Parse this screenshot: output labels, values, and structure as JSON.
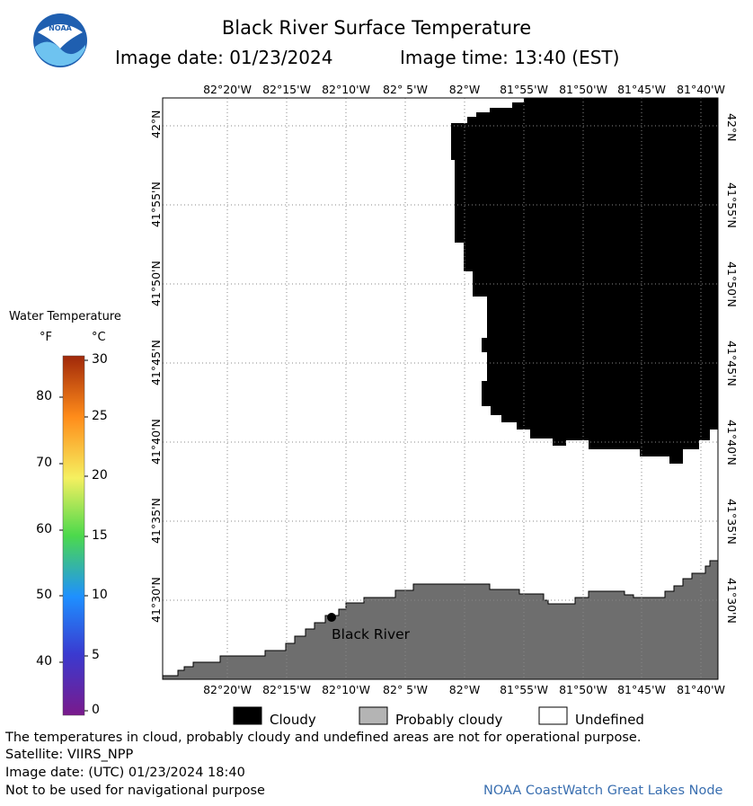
{
  "header": {
    "title": "Black River Surface Temperature",
    "image_date": "Image date: 01/23/2024",
    "image_time": "Image time: 13:40 (EST)"
  },
  "logo": {
    "text": "NOAA",
    "icon": "noaa-logo-icon"
  },
  "map": {
    "lon_labels": [
      "82°20'W",
      "82°15'W",
      "82°10'W",
      "82° 5'W",
      "82°W",
      "81°55'W",
      "81°50'W",
      "81°45'W",
      "81°40'W"
    ],
    "lat_labels": [
      "42°N",
      "41°55'N",
      "41°50'N",
      "41°45'N",
      "41°40'N",
      "41°35'N",
      "41°30'N"
    ],
    "city": {
      "name": "Black River"
    },
    "colors": {
      "cloud": "#000000",
      "land": "#6e6e6e",
      "water_undefined": "#ffffff"
    }
  },
  "legend": {
    "title": "Water Temperature",
    "unit_f": "°F",
    "unit_c": "°C",
    "f_ticks": [
      "80",
      "70",
      "60",
      "50",
      "40"
    ],
    "c_ticks": [
      "30",
      "25",
      "20",
      "15",
      "10",
      "5",
      "0"
    ]
  },
  "key": {
    "cloudy": "Cloudy",
    "probably_cloudy": "Probably cloudy",
    "undefined": "Undefined"
  },
  "footer": {
    "disclaimer": "The temperatures in cloud, probably cloudy and undefined areas are not for operational purpose.",
    "satellite": "Satellite: VIIRS_NPP",
    "utc_date": "Image date: (UTC) 01/23/2024  18:40",
    "nav_warning": "Not to be used for navigational purpose",
    "credit": "NOAA CoastWatch Great Lakes Node"
  }
}
